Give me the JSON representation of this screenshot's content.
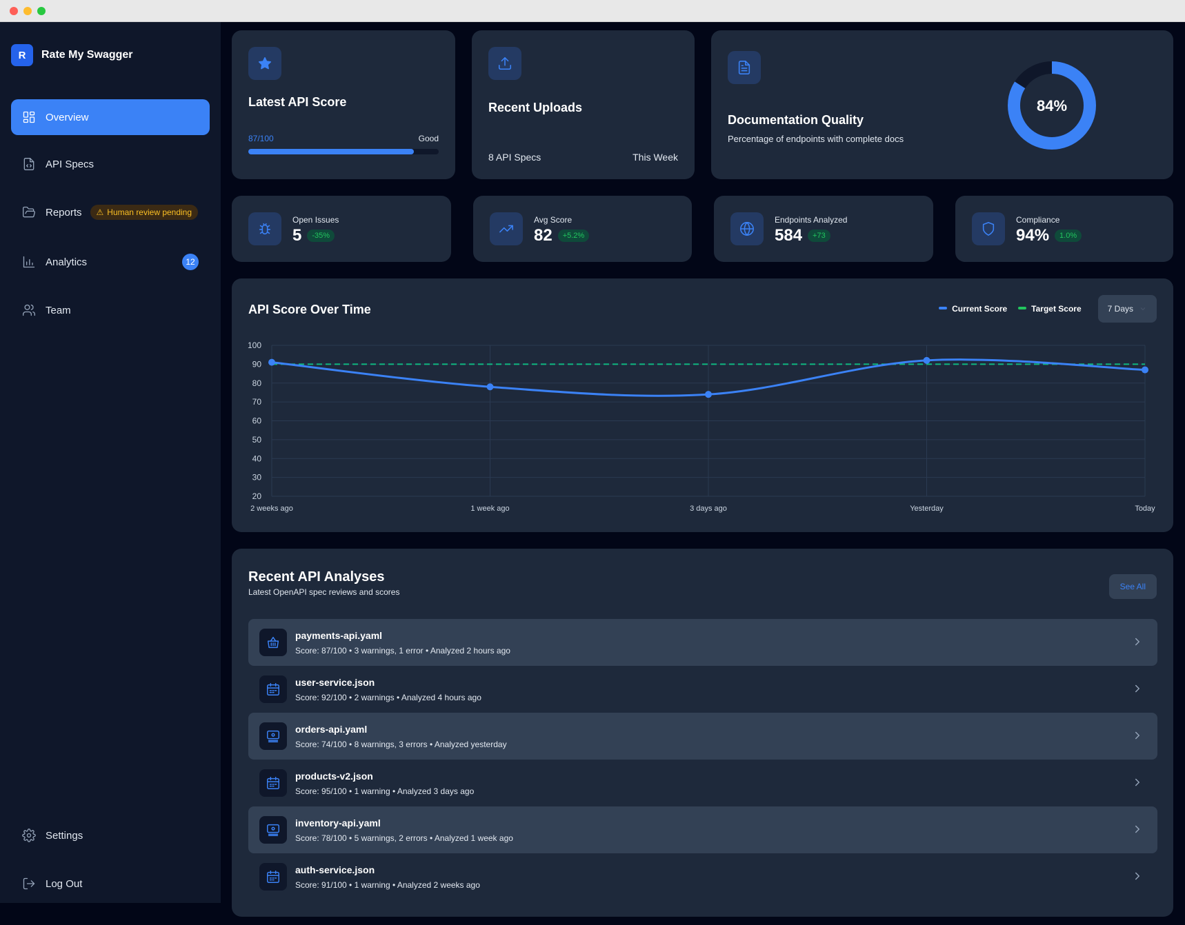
{
  "app": {
    "logo_letter": "R",
    "name": "Rate My Swagger"
  },
  "nav": {
    "overview": "Overview",
    "api_specs": "API Specs",
    "reports": "Reports",
    "reports_badge": "Human review pending",
    "analytics": "Analytics",
    "analytics_count": "12",
    "team": "Team",
    "settings": "Settings",
    "logout": "Log Out"
  },
  "cards": {
    "latest_score": {
      "title": "Latest API Score",
      "score_text": "87/100",
      "rating": "Good",
      "progress": 0.87
    },
    "recent_uploads": {
      "title": "Recent Uploads",
      "count_text": "8 API Specs",
      "period": "This Week"
    },
    "doc_quality": {
      "title": "Documentation Quality",
      "description": "Percentage of endpoints with complete docs",
      "percent_text": "84%",
      "percent": 0.84
    }
  },
  "stats": [
    {
      "label": "Open Issues",
      "value": "5",
      "delta": "-35%",
      "icon": "bug-icon"
    },
    {
      "label": "Avg Score",
      "value": "82",
      "delta": "+5.2%",
      "icon": "trending-up-icon"
    },
    {
      "label": "Endpoints Analyzed",
      "value": "584",
      "delta": "+73",
      "icon": "globe-icon"
    },
    {
      "label": "Compliance",
      "value": "94%",
      "delta": "1.0%",
      "icon": "shield-icon"
    }
  ],
  "chart_data": {
    "type": "line",
    "title": "API Score Over Time",
    "categories": [
      "2 weeks ago",
      "1 week ago",
      "3 days ago",
      "Yesterday",
      "Today"
    ],
    "series": [
      {
        "name": "Current Score",
        "values": [
          91,
          78,
          74,
          92,
          87
        ],
        "color": "#3b82f6"
      },
      {
        "name": "Target Score",
        "values": [
          90,
          90,
          90,
          90,
          90
        ],
        "color": "#10b981"
      }
    ],
    "ylim": [
      20,
      100
    ],
    "yticks": [
      100,
      90,
      80,
      70,
      60,
      50,
      40,
      30,
      20
    ],
    "range_select": "7 Days"
  },
  "analyses": {
    "title": "Recent API Analyses",
    "subtitle": "Latest OpenAPI spec reviews and scores",
    "see_all": "See All",
    "items": [
      {
        "name": "payments-api.yaml",
        "meta": "Score: 87/100 • 3 warnings, 1 error • Analyzed 2 hours ago",
        "icon": "basket-icon"
      },
      {
        "name": "user-service.json",
        "meta": "Score: 92/100 • 2 warnings • Analyzed 4 hours ago",
        "icon": "calendar-icon"
      },
      {
        "name": "orders-api.yaml",
        "meta": "Score: 74/100 • 8 warnings, 3 errors • Analyzed yesterday",
        "icon": "server-icon"
      },
      {
        "name": "products-v2.json",
        "meta": "Score: 95/100 • 1 warning • Analyzed 3 days ago",
        "icon": "calendar-icon"
      },
      {
        "name": "inventory-api.yaml",
        "meta": "Score: 78/100 • 5 warnings, 2 errors • Analyzed 1 week ago",
        "icon": "server-icon"
      },
      {
        "name": "auth-service.json",
        "meta": "Score: 91/100 • 1 warning • Analyzed 2 weeks ago",
        "icon": "calendar-icon"
      }
    ]
  },
  "colors": {
    "accent": "#3b82f6",
    "success": "#22c55e",
    "warning": "#fbbf24",
    "surface": "#1e293b",
    "background": "#020617"
  }
}
